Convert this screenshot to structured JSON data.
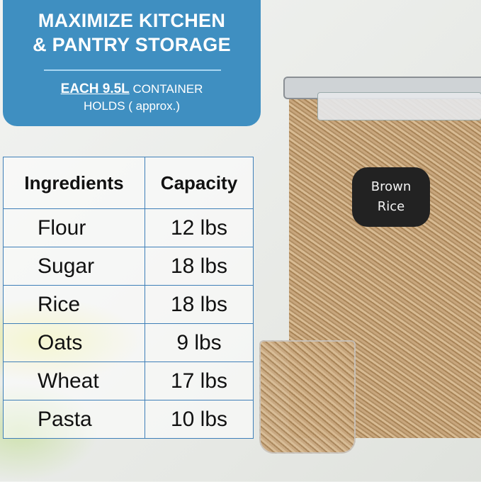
{
  "banner": {
    "title_line1": "MAXIMIZE KITCHEN",
    "title_line2": "& PANTRY STORAGE",
    "sub_bold": "EACH 9.5L",
    "sub_rest": " CONTAINER",
    "sub_line2": "HOLDS ( approx.)"
  },
  "table": {
    "headers": [
      "Ingredients",
      "Capacity"
    ],
    "rows": [
      {
        "ingredient": "Flour",
        "capacity": "12 lbs"
      },
      {
        "ingredient": "Sugar",
        "capacity": "18 lbs"
      },
      {
        "ingredient": "Rice",
        "capacity": "18 lbs"
      },
      {
        "ingredient": "Oats",
        "capacity": "9 lbs"
      },
      {
        "ingredient": "Wheat",
        "capacity": "17 lbs"
      },
      {
        "ingredient": "Pasta",
        "capacity": "10 lbs"
      }
    ]
  },
  "product_label": {
    "line1": "Brown",
    "line2": "Rice"
  },
  "colors": {
    "banner": "#3f8fc1",
    "table_border": "#3f7fb8"
  }
}
